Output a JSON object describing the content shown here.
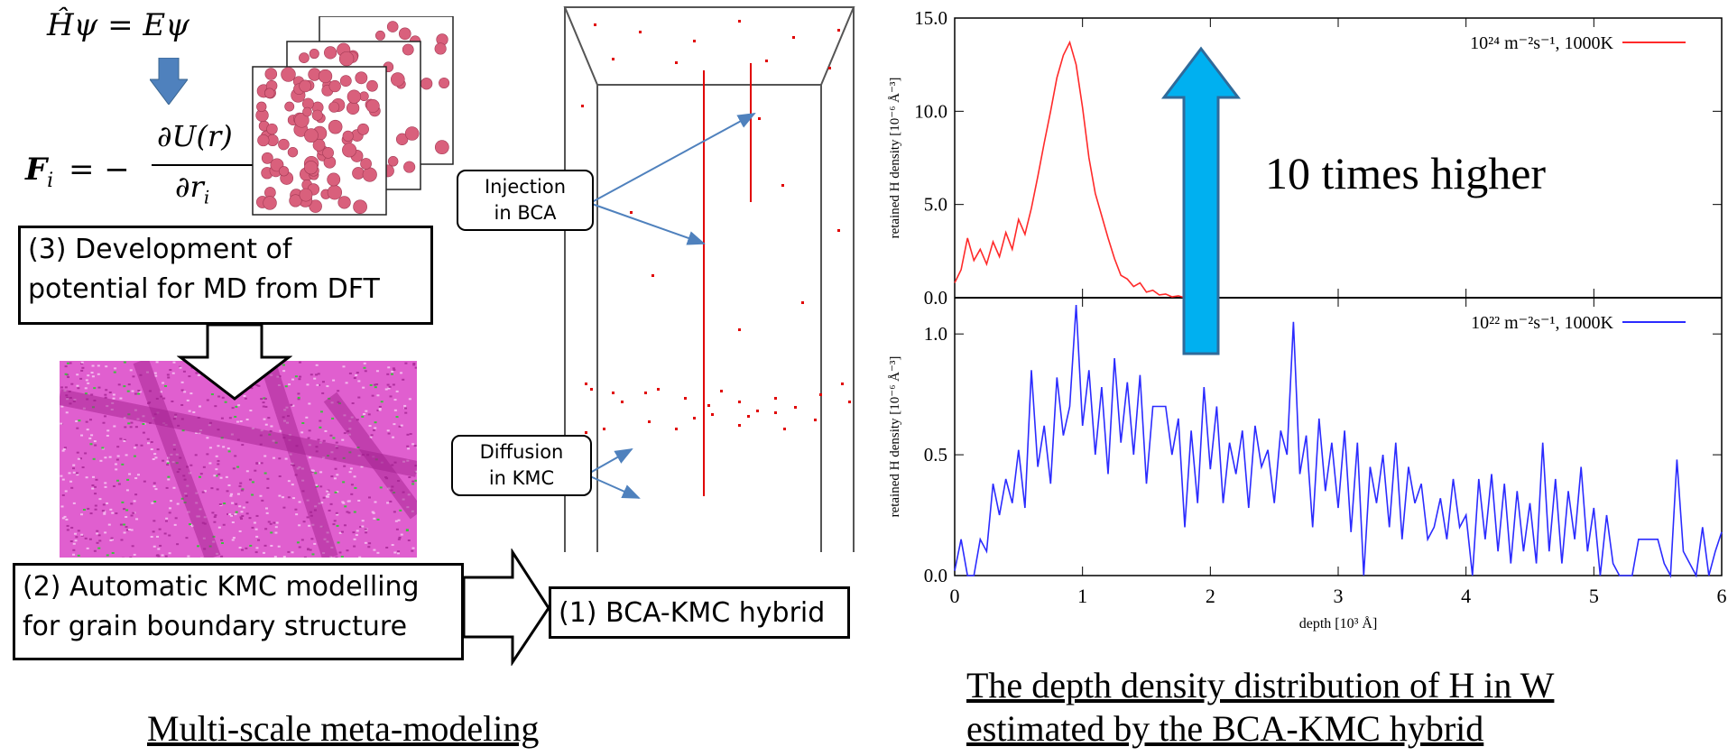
{
  "left": {
    "eq_schrodinger": "Ĥψ = Eψ",
    "eq_force_lhs": "F",
    "eq_force_sub": "i",
    "eq_force_eq": "= −",
    "eq_force_num": "∂U(r)",
    "eq_force_den": "∂r",
    "eq_force_den_sub": "i",
    "box3_line1": "(3) Development of",
    "box3_line2": "potential for MD from DFT",
    "box2_line1": "(2) Automatic KMC modelling",
    "box2_line2": "for grain boundary structure",
    "box1": "(1) BCA-KMC hybrid",
    "callout_injection_1": "Injection",
    "callout_injection_2": "in BCA",
    "callout_diffusion_1": "Diffusion",
    "callout_diffusion_2": "in KMC",
    "caption": "Multi-scale meta-modeling"
  },
  "right": {
    "caption_line1": "The depth density distribution of H in W",
    "caption_line2": "estimated by the BCA-KMC hybrid",
    "arrow_label": "10 times higher",
    "arrow_color": "#00b0f0"
  },
  "chart_data": [
    {
      "type": "line",
      "panel": "top",
      "ylabel": "retained H density [10⁻⁶ Å⁻³]",
      "ylim": [
        0,
        15
      ],
      "yticks": [
        "0.0",
        "5.0",
        "10.0",
        "15.0"
      ],
      "xlim": [
        0,
        6
      ],
      "legend": "10²⁴ m⁻²s⁻¹, 1000K",
      "color": "#ff2a2a",
      "x": [
        0.0,
        0.05,
        0.1,
        0.15,
        0.2,
        0.25,
        0.3,
        0.35,
        0.4,
        0.45,
        0.5,
        0.55,
        0.6,
        0.65,
        0.7,
        0.75,
        0.8,
        0.85,
        0.9,
        0.95,
        1.0,
        1.05,
        1.1,
        1.15,
        1.2,
        1.25,
        1.3,
        1.35,
        1.4,
        1.45,
        1.5,
        1.55,
        1.6,
        1.65,
        1.7,
        1.75,
        1.8,
        1.85,
        1.9
      ],
      "y": [
        0.8,
        1.5,
        3.2,
        2.0,
        2.6,
        1.8,
        3.0,
        2.2,
        3.5,
        2.6,
        4.2,
        3.4,
        4.8,
        6.5,
        8.3,
        10.0,
        11.8,
        13.0,
        13.7,
        12.5,
        10.2,
        7.5,
        5.6,
        4.4,
        3.2,
        2.1,
        1.2,
        1.0,
        0.6,
        0.8,
        0.3,
        0.4,
        0.15,
        0.2,
        0.05,
        0.1,
        0.0,
        0.05,
        0.0
      ]
    },
    {
      "type": "line",
      "panel": "bottom",
      "ylabel": "retained H density [10⁻⁶ Å⁻³]",
      "ylim": [
        0,
        1.15
      ],
      "yticks": [
        "0.0",
        "0.5",
        "1.0"
      ],
      "xlabel": "depth [10³ Å]",
      "xlim": [
        0,
        6
      ],
      "xticks": [
        "0",
        "1",
        "2",
        "3",
        "4",
        "5",
        "6"
      ],
      "legend": "10²² m⁻²s⁻¹, 1000K",
      "color": "#2b2bff",
      "x": [
        0.0,
        0.05,
        0.1,
        0.15,
        0.2,
        0.25,
        0.3,
        0.35,
        0.4,
        0.45,
        0.5,
        0.55,
        0.6,
        0.65,
        0.7,
        0.75,
        0.8,
        0.85,
        0.9,
        0.95,
        1.0,
        1.05,
        1.1,
        1.15,
        1.2,
        1.25,
        1.3,
        1.35,
        1.4,
        1.45,
        1.5,
        1.55,
        1.6,
        1.65,
        1.7,
        1.75,
        1.8,
        1.85,
        1.9,
        1.95,
        2.0,
        2.05,
        2.1,
        2.15,
        2.2,
        2.25,
        2.3,
        2.35,
        2.4,
        2.45,
        2.5,
        2.55,
        2.6,
        2.65,
        2.7,
        2.75,
        2.8,
        2.85,
        2.9,
        2.95,
        3.0,
        3.05,
        3.1,
        3.15,
        3.2,
        3.25,
        3.3,
        3.35,
        3.4,
        3.45,
        3.5,
        3.55,
        3.6,
        3.65,
        3.7,
        3.75,
        3.8,
        3.85,
        3.9,
        3.95,
        4.0,
        4.05,
        4.1,
        4.15,
        4.2,
        4.25,
        4.3,
        4.35,
        4.4,
        4.45,
        4.5,
        4.55,
        4.6,
        4.65,
        4.7,
        4.75,
        4.8,
        4.85,
        4.9,
        4.95,
        5.0,
        5.05,
        5.1,
        5.15,
        5.2,
        5.25,
        5.3,
        5.35,
        5.4,
        5.45,
        5.5,
        5.55,
        5.6,
        5.65,
        5.7,
        5.75,
        5.8,
        5.85,
        5.9,
        5.95,
        6.0
      ],
      "y": [
        0.02,
        0.15,
        0.0,
        0.0,
        0.15,
        0.1,
        0.38,
        0.25,
        0.4,
        0.3,
        0.52,
        0.28,
        0.85,
        0.45,
        0.62,
        0.38,
        0.82,
        0.58,
        0.7,
        1.12,
        0.62,
        0.85,
        0.5,
        0.78,
        0.42,
        0.9,
        0.55,
        0.8,
        0.5,
        0.83,
        0.38,
        0.7,
        0.7,
        0.7,
        0.5,
        0.65,
        0.2,
        0.6,
        0.3,
        0.78,
        0.44,
        0.7,
        0.3,
        0.55,
        0.42,
        0.6,
        0.28,
        0.62,
        0.45,
        0.52,
        0.3,
        0.6,
        0.5,
        1.05,
        0.42,
        0.58,
        0.2,
        0.65,
        0.35,
        0.55,
        0.28,
        0.6,
        0.18,
        0.55,
        0.0,
        0.45,
        0.3,
        0.5,
        0.2,
        0.55,
        0.15,
        0.45,
        0.3,
        0.38,
        0.15,
        0.2,
        0.32,
        0.15,
        0.4,
        0.2,
        0.25,
        0.0,
        0.4,
        0.15,
        0.42,
        0.1,
        0.38,
        0.05,
        0.35,
        0.1,
        0.3,
        0.05,
        0.55,
        0.1,
        0.4,
        0.05,
        0.35,
        0.15,
        0.45,
        0.1,
        0.28,
        0.0,
        0.25,
        0.05,
        0.0,
        0.0,
        0.0,
        0.15,
        0.15,
        0.15,
        0.15,
        0.05,
        0.0,
        0.48,
        0.1,
        0.05,
        0.0,
        0.2,
        0.0,
        0.1,
        0.18
      ]
    }
  ]
}
